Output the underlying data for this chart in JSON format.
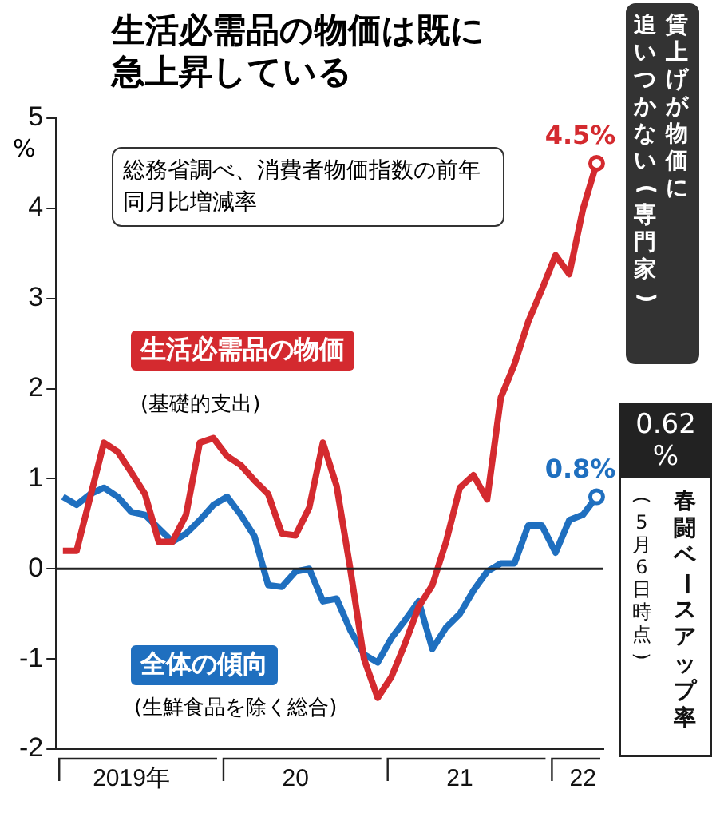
{
  "chart_data": {
    "type": "line",
    "title": "生活必需品の物価は既に急上昇している",
    "ylabel": "%",
    "categories": [
      null,
      null,
      null,
      null,
      null,
      "2019年",
      null,
      null,
      null,
      null,
      null,
      null,
      null,
      null,
      null,
      null,
      null,
      "20",
      null,
      null,
      null,
      null,
      null,
      null,
      null,
      null,
      null,
      null,
      null,
      "21",
      null,
      null,
      null,
      null,
      null,
      null,
      null,
      null,
      "22",
      null
    ],
    "series": [
      {
        "name": "生活必需品の物価",
        "color": "#d42a2f",
        "values": [
          0.2,
          0.2,
          0.8,
          1.4,
          1.3,
          1.07,
          0.83,
          0.3,
          0.3,
          0.6,
          1.4,
          1.45,
          1.25,
          1.15,
          0.98,
          0.83,
          0.39,
          0.37,
          0.68,
          1.4,
          0.92,
          0,
          -1.0,
          -1.43,
          -1.2,
          -0.83,
          -0.42,
          -0.18,
          0.3,
          0.9,
          1.04,
          0.77,
          1.9,
          2.27,
          2.74,
          3.1,
          3.48,
          3.27,
          3.99,
          4.5
        ]
      },
      {
        "name": "全体の傾向",
        "color": "#1f6fbf",
        "values": [
          0.8,
          0.71,
          0.83,
          0.9,
          0.8,
          0.63,
          0.6,
          0.45,
          0.3,
          0.39,
          0.54,
          0.71,
          0.8,
          0.6,
          0.36,
          -0.18,
          -0.2,
          -0.03,
          0,
          -0.36,
          -0.33,
          -0.68,
          -0.95,
          -1.04,
          -0.77,
          -0.57,
          -0.36,
          -0.89,
          -0.65,
          -0.5,
          -0.24,
          -0.03,
          0.06,
          0.06,
          0.48,
          0.48,
          0.18,
          0.54,
          0.6,
          0.8
        ]
      }
    ],
    "ylim": [
      -2,
      5
    ],
    "yticks": [
      -2,
      -1,
      0,
      1,
      2,
      3,
      4,
      5
    ],
    "grid": false,
    "legend": false,
    "marker": "none",
    "line_style": "solid",
    "ref_lines": [
      {
        "axis": "y",
        "value": 0
      }
    ],
    "annotations": [
      "総務省調べ、消費者物価指数の前年同月比増減率",
      "(基礎的支出)",
      "(生鮮食品を除く総合)",
      "4.5%",
      "0.8%",
      "賃上げが物価に",
      "追いつかない(専門家)",
      "0.62%",
      "春闘ベースアップ率",
      "(5月6日時点)"
    ]
  }
}
